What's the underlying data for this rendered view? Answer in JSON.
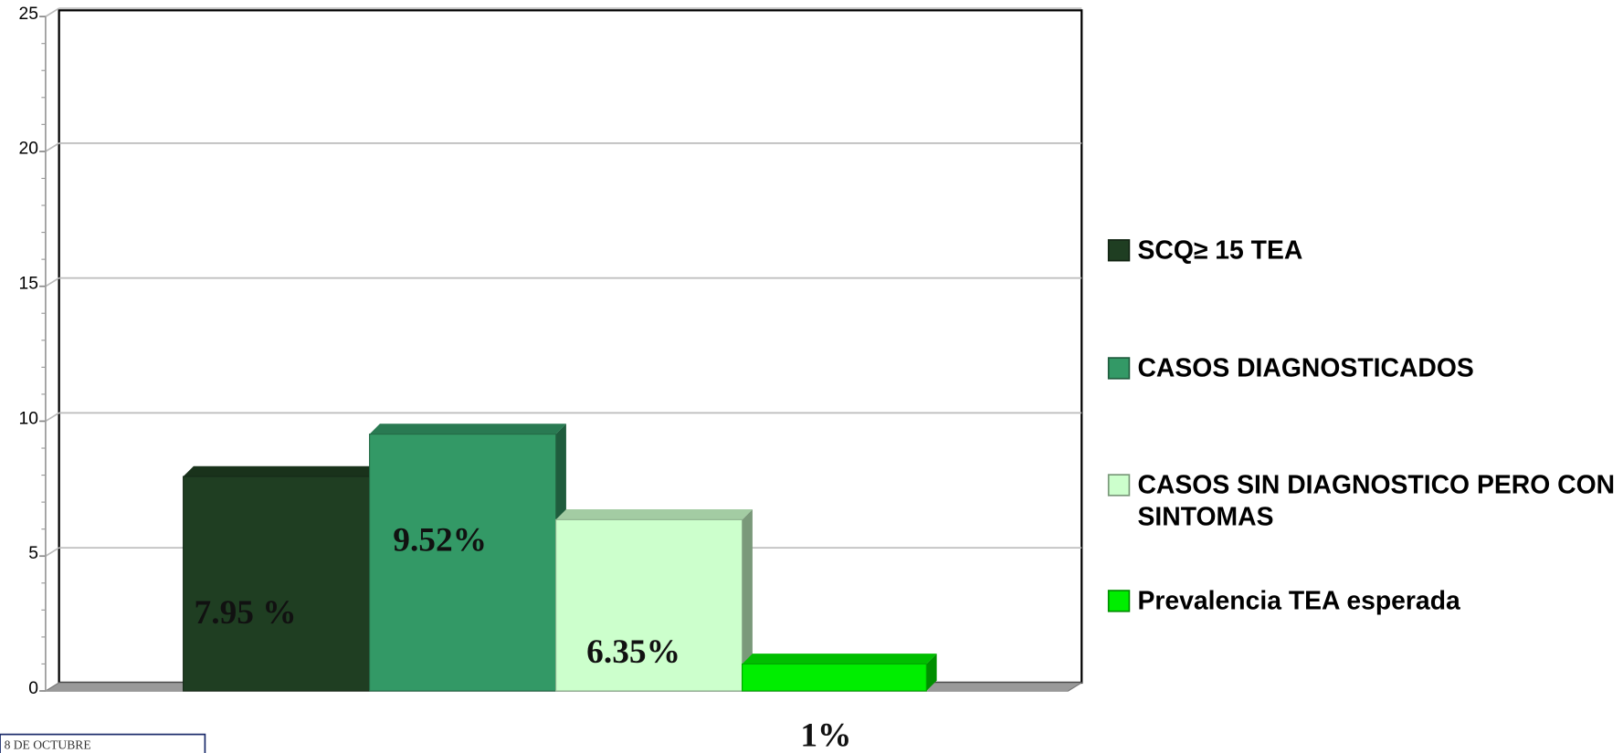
{
  "chart_data": {
    "type": "bar3d",
    "categories": [
      null
    ],
    "series": [
      {
        "name": "SCQ≥ 15 TEA",
        "color": "#1f3e22",
        "values": [
          7.95
        ],
        "value_labels": [
          "7.95 %"
        ]
      },
      {
        "name": "CASOS DIAGNOSTICADOS",
        "color": "#339966",
        "values": [
          9.52
        ],
        "value_labels": [
          "9.52%"
        ]
      },
      {
        "name": "CASOS SIN DIAGNOSTICO PERO CON SINTOMAS",
        "color": "#ccffcc",
        "values": [
          6.35
        ],
        "value_labels": [
          "6.35%"
        ]
      },
      {
        "name": "Prevalencia TEA  esperada",
        "color": "#00ee00",
        "values": [
          1
        ],
        "value_labels": [
          "1%"
        ]
      }
    ],
    "ylim": [
      0,
      25
    ],
    "yticks": [
      0,
      5,
      10,
      15,
      20,
      25
    ],
    "grid": true,
    "legend": "right",
    "footer_note": "8 DE OCTUBRE"
  }
}
